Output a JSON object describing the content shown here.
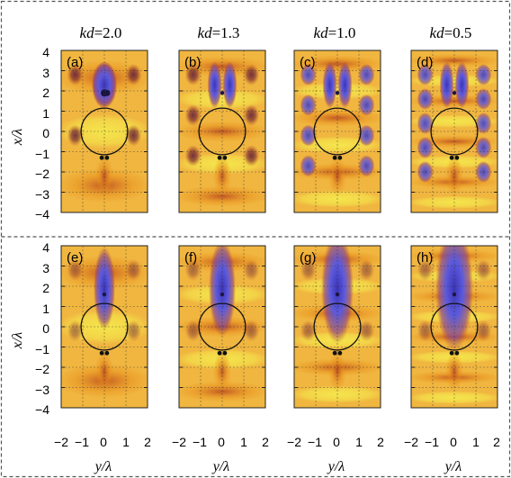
{
  "column_titles": [
    {
      "var": "kd",
      "value": "=2.0"
    },
    {
      "var": "kd",
      "value": "=1.3"
    },
    {
      "var": "kd",
      "value": "=1.0"
    },
    {
      "var": "kd",
      "value": "=0.5"
    }
  ],
  "panel_labels": [
    "(a)",
    "(b)",
    "(c)",
    "(d)",
    "(e)",
    "(f)",
    "(g)",
    "(h)"
  ],
  "axes": {
    "ylabel_top": "x/λ",
    "ylabel_bottom": "x/λ",
    "xlabels": [
      "y/λ",
      "y/λ",
      "y/λ",
      "y/λ"
    ],
    "y_ticks": [
      "4",
      "3",
      "2",
      "1",
      "0",
      "−1",
      "−2",
      "−3",
      "−4"
    ],
    "x_ticks": [
      "−2",
      "−1",
      "0",
      "1",
      "2"
    ],
    "y_range": [
      -4,
      4
    ],
    "x_range": [
      -2,
      2
    ]
  },
  "colors": {
    "hot": "#f5e64c",
    "mid": "#e8901c",
    "warm": "#b8461e",
    "dark": "#5a1a3c",
    "cold": "#5c5adc",
    "frame": "#555555"
  },
  "rows": [
    {
      "hotspot_x": 1.9,
      "dots_x": -1.3,
      "dots_offsets_y": [
        -0.12,
        0.12
      ]
    },
    {
      "hotspot_x": 1.6,
      "dots_x": -1.3,
      "dots_offsets_y": [
        -0.12,
        0.12
      ]
    }
  ]
}
